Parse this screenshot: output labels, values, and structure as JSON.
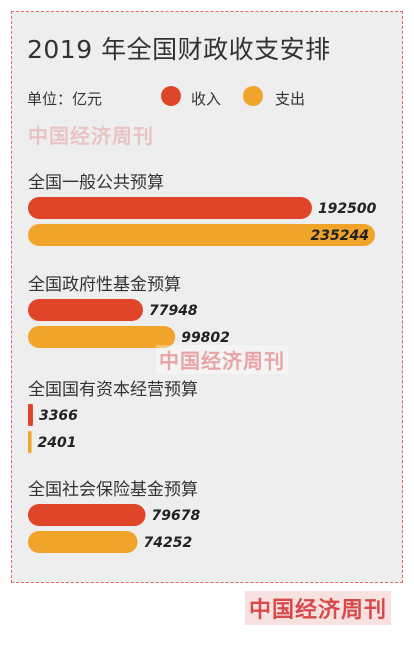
{
  "title": "2019 年全国财政收支安排",
  "unit_label": "单位：亿元",
  "legend": {
    "income": {
      "label": "收入",
      "color": "#e0452a"
    },
    "expense": {
      "label": "支出",
      "color": "#f0a52a"
    }
  },
  "watermark": "中国经济周刊",
  "chart_data": {
    "type": "bar",
    "orientation": "horizontal",
    "unit": "亿元",
    "categories": [
      "全国一般公共预算",
      "全国政府性基金预算",
      "全国国有资本经营预算",
      "全国社会保险基金预算"
    ],
    "series": [
      {
        "name": "收入",
        "color": "#e0452a",
        "values": [
          192500,
          77948,
          3366,
          79678
        ]
      },
      {
        "name": "支出",
        "color": "#f0a52a",
        "values": [
          235244,
          99802,
          2401,
          74252
        ]
      }
    ],
    "xlim": [
      0,
      235244
    ],
    "legend_position": "top-left",
    "grid": false
  }
}
